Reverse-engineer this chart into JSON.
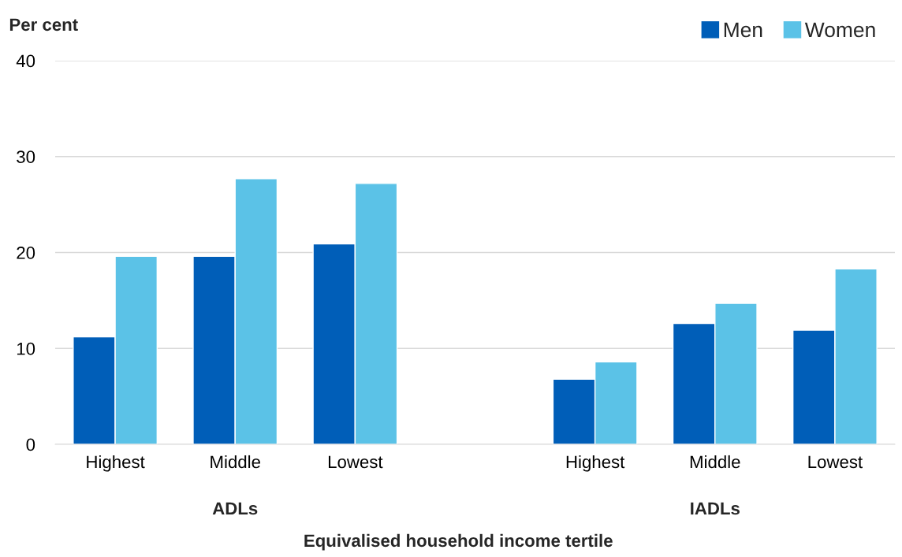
{
  "chart_data": {
    "type": "bar",
    "ylabel": "Per cent",
    "xlabel": "Equivalised household income tertile",
    "categories": [
      "Highest",
      "Middle",
      "Lowest",
      null,
      "Highest",
      "Middle",
      "Lowest"
    ],
    "series": [
      {
        "name": "Men",
        "color": "#005eb8",
        "values": [
          11.2,
          19.6,
          20.9,
          null,
          6.8,
          12.6,
          11.9
        ]
      },
      {
        "name": "Women",
        "color": "#5bc2e7",
        "values": [
          19.6,
          27.7,
          27.2,
          null,
          8.6,
          14.7,
          18.3
        ]
      }
    ],
    "ylim": [
      0,
      40
    ],
    "yticks": [
      0,
      10,
      20,
      30,
      40
    ],
    "grid": "y",
    "legend": "top right",
    "annotations": [
      "ADLs",
      "IADLs"
    ]
  }
}
